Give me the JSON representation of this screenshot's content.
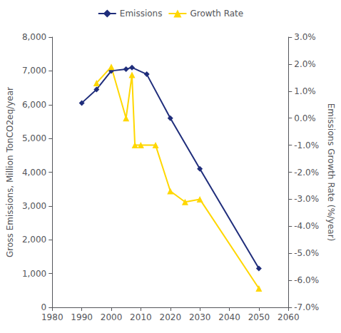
{
  "chart_data": {
    "type": "line",
    "series": [
      {
        "name": "Emissions",
        "color": "#1f2d7b",
        "marker": "diamond",
        "line_style": "solid",
        "x": [
          1990,
          1995,
          2000,
          2005,
          2007,
          2012,
          2020,
          2030,
          2050
        ],
        "values": [
          6050,
          6450,
          7000,
          7050,
          7100,
          6900,
          5600,
          4100,
          1150
        ]
      },
      {
        "name": "Growth Rate",
        "color": "#ffd700",
        "marker": "triangle",
        "line_style": "solid",
        "axis": "y2",
        "x": [
          1995,
          2000,
          2005,
          2007,
          2008,
          2010,
          2015,
          2020,
          2025,
          2030,
          2050
        ],
        "values": [
          0.013,
          0.019,
          0.0,
          0.016,
          -0.01,
          -0.01,
          -0.01,
          -0.027,
          -0.031,
          -0.03,
          -0.063
        ]
      }
    ],
    "ylabel": "Gross Emissions, Million TonCO2eq/year",
    "y2label": "Emissions Growth Rate (%/year)",
    "xlim": [
      1980,
      2060
    ],
    "xticks": [
      1980,
      1990,
      2000,
      2010,
      2020,
      2030,
      2040,
      2050,
      2060
    ],
    "ylim": [
      0,
      8000
    ],
    "yticks": [
      0,
      {
        "value": 1000,
        "label": "1,000"
      },
      {
        "value": 2000,
        "label": "2,000"
      },
      {
        "value": 3000,
        "label": "3,000"
      },
      {
        "value": 4000,
        "label": "4,000"
      },
      {
        "value": 5000,
        "label": "5,000"
      },
      {
        "value": 6000,
        "label": "6,000"
      },
      {
        "value": 7000,
        "label": "7,000"
      },
      {
        "value": 8000,
        "label": "8,000"
      }
    ],
    "y2lim": [
      -0.07,
      0.03
    ],
    "y2ticks": [
      {
        "value": -0.07,
        "label": "-7.0%"
      },
      {
        "value": -0.06,
        "label": "-6.0%"
      },
      {
        "value": -0.05,
        "label": "-5.0%"
      },
      {
        "value": -0.04,
        "label": "-4.0%"
      },
      {
        "value": -0.03,
        "label": "-3.0%"
      },
      {
        "value": -0.02,
        "label": "-2.0%"
      },
      {
        "value": -0.01,
        "label": "-1.0%"
      },
      {
        "value": 0.0,
        "label": "0.0%"
      },
      {
        "value": 0.01,
        "label": "1.0%"
      },
      {
        "value": 0.02,
        "label": "2.0%"
      },
      {
        "value": 0.03,
        "label": "3.0%"
      }
    ],
    "grid": false,
    "legend": "top"
  }
}
